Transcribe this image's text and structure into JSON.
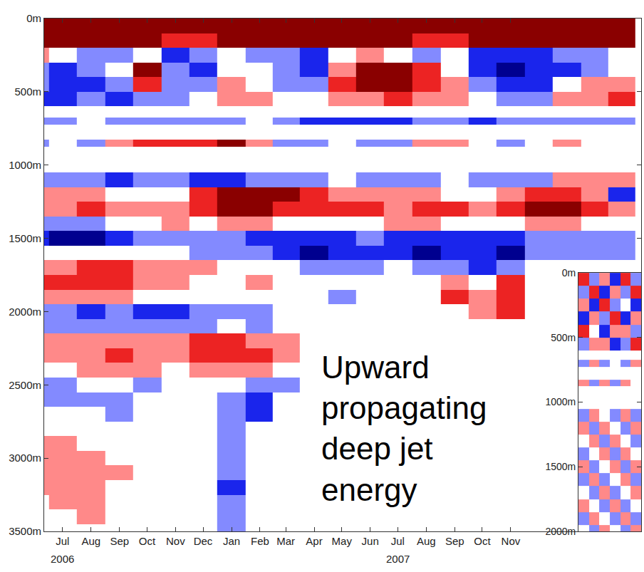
{
  "chart_data": [
    {
      "type": "heatmap",
      "x": [
        "2006-06-15",
        "2006-07-15",
        "2006-08-15",
        "2006-09-15",
        "2006-10-15",
        "2006-11-15",
        "2006-12-15",
        "2007-01-15",
        "2007-02-15",
        "2007-03-15",
        "2007-04-15",
        "2007-05-15",
        "2007-06-15",
        "2007-07-15",
        "2007-08-15",
        "2007-09-15",
        "2007-10-15",
        "2007-11-15",
        "2007-12-15",
        "2008-01-15",
        "2008-02-15",
        "2008-03-15"
      ],
      "y": [
        50,
        150,
        250,
        350,
        450,
        550,
        650,
        700,
        750,
        800,
        850,
        900,
        1000,
        1100,
        1200,
        1300,
        1400,
        1500,
        1600,
        1700,
        1800,
        1900,
        2000,
        2100,
        2200,
        2300,
        2400,
        2500,
        2600,
        2700,
        2800,
        2900,
        3000,
        3100,
        3200,
        3300,
        3400,
        3500
      ],
      "cells": [
        [
          3,
          3,
          3,
          3,
          3,
          3,
          3,
          3,
          3,
          3,
          3,
          3,
          3,
          3,
          3,
          3,
          3,
          3,
          3,
          3,
          3,
          3
        ],
        [
          3,
          3,
          3,
          3,
          3,
          2,
          2,
          3,
          3,
          3,
          3,
          3,
          3,
          3,
          2,
          2,
          3,
          3,
          3,
          3,
          3,
          3
        ],
        [
          1,
          0,
          -1,
          -1,
          0,
          -2,
          -1,
          0,
          -1,
          -1,
          -2,
          0,
          1,
          0,
          -1,
          0,
          -2,
          -2,
          -2,
          -1,
          -1,
          0
        ],
        [
          -1,
          -2,
          -1,
          0,
          3,
          -1,
          -2,
          0,
          0,
          -1,
          -2,
          1,
          3,
          3,
          2,
          0,
          -2,
          -3,
          -2,
          -2,
          -1,
          0
        ],
        [
          -1,
          -2,
          -2,
          -1,
          2,
          -1,
          -1,
          1,
          0,
          -1,
          -1,
          2,
          3,
          3,
          2,
          1,
          -1,
          -2,
          -2,
          0,
          1,
          1
        ],
        [
          -2,
          -2,
          -1,
          -2,
          -1,
          -1,
          0,
          1,
          1,
          0,
          0,
          1,
          1,
          2,
          1,
          1,
          0,
          -1,
          -1,
          1,
          1,
          2
        ],
        [
          null,
          null,
          null,
          null,
          null,
          null,
          null,
          null,
          null,
          null,
          null,
          null,
          null,
          null,
          null,
          null,
          null,
          null,
          null,
          null,
          null,
          null
        ],
        [
          -1,
          -1,
          0,
          -1,
          -1,
          -1,
          -1,
          -1,
          0,
          -1,
          -2,
          -2,
          -2,
          -2,
          -1,
          -1,
          -2,
          -1,
          -1,
          -1,
          -1,
          -1
        ],
        [
          null,
          null,
          null,
          null,
          null,
          null,
          null,
          null,
          null,
          null,
          null,
          null,
          null,
          null,
          null,
          null,
          null,
          null,
          null,
          null,
          null,
          null
        ],
        [
          null,
          null,
          null,
          null,
          null,
          null,
          null,
          null,
          null,
          null,
          null,
          null,
          null,
          null,
          null,
          null,
          null,
          null,
          null,
          null,
          null,
          null
        ],
        [
          -1,
          0,
          -1,
          1,
          2,
          2,
          2,
          3,
          1,
          -1,
          -1,
          0,
          -1,
          -1,
          1,
          1,
          0,
          -1,
          0,
          1,
          0,
          0
        ],
        [
          null,
          null,
          null,
          null,
          null,
          null,
          null,
          null,
          null,
          null,
          null,
          null,
          null,
          null,
          null,
          null,
          null,
          null,
          null,
          null,
          null,
          null
        ],
        [
          null,
          null,
          null,
          null,
          null,
          null,
          null,
          null,
          null,
          null,
          null,
          null,
          null,
          null,
          null,
          null,
          null,
          null,
          null,
          null,
          null,
          null
        ],
        [
          -1,
          -1,
          -1,
          -2,
          -1,
          -1,
          -2,
          -2,
          -1,
          -1,
          -1,
          0,
          -1,
          -1,
          -1,
          0,
          -1,
          -1,
          -1,
          1,
          1,
          1
        ],
        [
          1,
          1,
          1,
          0,
          0,
          0,
          2,
          3,
          3,
          3,
          2,
          1,
          1,
          1,
          1,
          0,
          0,
          1,
          2,
          2,
          1,
          -2
        ],
        [
          1,
          1,
          2,
          1,
          1,
          1,
          2,
          3,
          3,
          2,
          2,
          2,
          2,
          1,
          2,
          2,
          1,
          2,
          3,
          3,
          2,
          1
        ],
        [
          -1,
          -1,
          -1,
          0,
          0,
          1,
          0,
          1,
          1,
          0,
          0,
          0,
          0,
          1,
          1,
          0,
          0,
          0,
          1,
          1,
          0,
          0
        ],
        [
          -2,
          -3,
          -3,
          -2,
          -1,
          -1,
          -1,
          -1,
          -2,
          -2,
          -2,
          -2,
          -1,
          -2,
          -2,
          -2,
          -2,
          -2,
          -1,
          -1,
          -1,
          -1
        ],
        [
          0,
          0,
          0,
          0,
          0,
          0,
          -1,
          -1,
          -1,
          -2,
          -3,
          -2,
          -2,
          -2,
          -3,
          -2,
          -2,
          -3,
          -1,
          -1,
          -1,
          -1
        ],
        [
          1,
          1,
          2,
          2,
          1,
          1,
          1,
          0,
          0,
          0,
          -1,
          -1,
          -1,
          null,
          -1,
          -1,
          -2,
          -1,
          null,
          null,
          null,
          null
        ],
        [
          2,
          2,
          2,
          2,
          1,
          1,
          0,
          0,
          1,
          0,
          0,
          0,
          0,
          null,
          null,
          1,
          0,
          2,
          null,
          null,
          null,
          null
        ],
        [
          1,
          1,
          1,
          1,
          0,
          0,
          0,
          0,
          0,
          0,
          0,
          -1,
          null,
          null,
          null,
          2,
          1,
          2,
          null,
          null,
          null,
          null
        ],
        [
          -1,
          -1,
          -2,
          -1,
          -2,
          -2,
          -1,
          -1,
          -1,
          0,
          0,
          null,
          null,
          null,
          null,
          null,
          1,
          2,
          null,
          null,
          null,
          null
        ],
        [
          -1,
          -1,
          -1,
          -1,
          -1,
          -1,
          -1,
          0,
          -1,
          0,
          0,
          null,
          null,
          null,
          null,
          null,
          null,
          null,
          null,
          null,
          null,
          null
        ],
        [
          1,
          1,
          1,
          1,
          1,
          1,
          2,
          2,
          1,
          1,
          null,
          null,
          null,
          null,
          null,
          null,
          null,
          null,
          null,
          null,
          null,
          null
        ],
        [
          1,
          1,
          1,
          2,
          1,
          1,
          2,
          2,
          2,
          1,
          null,
          null,
          null,
          null,
          null,
          null,
          null,
          null,
          null,
          null,
          null,
          null
        ],
        [
          0,
          0,
          1,
          1,
          1,
          0,
          1,
          1,
          1,
          0,
          null,
          null,
          null,
          null,
          null,
          null,
          null,
          null,
          null,
          null,
          null,
          null
        ],
        [
          -1,
          -1,
          0,
          0,
          -1,
          0,
          0,
          0,
          -1,
          -1,
          null,
          null,
          null,
          null,
          null,
          null,
          null,
          null,
          null,
          null,
          null,
          null
        ],
        [
          -1,
          -1,
          -1,
          -1,
          0,
          0,
          0,
          -1,
          -2,
          null,
          null,
          null,
          null,
          null,
          null,
          null,
          null,
          null,
          null,
          null,
          null,
          null
        ],
        [
          0,
          0,
          0,
          -1,
          0,
          0,
          0,
          -1,
          -2,
          null,
          null,
          null,
          null,
          null,
          null,
          null,
          null,
          null,
          null,
          null,
          null,
          null
        ],
        [
          0,
          0,
          0,
          0,
          0,
          0,
          0,
          -1,
          null,
          null,
          null,
          null,
          null,
          null,
          null,
          null,
          null,
          null,
          null,
          null,
          null,
          null
        ],
        [
          1,
          1,
          0,
          0,
          0,
          0,
          null,
          -1,
          null,
          null,
          null,
          null,
          null,
          null,
          null,
          null,
          null,
          null,
          null,
          null,
          null,
          null
        ],
        [
          1,
          1,
          1,
          0,
          0,
          0,
          null,
          -1,
          null,
          null,
          null,
          null,
          null,
          null,
          null,
          null,
          null,
          null,
          null,
          null,
          null,
          null
        ],
        [
          1,
          1,
          1,
          1,
          0,
          0,
          null,
          -1,
          null,
          null,
          null,
          null,
          null,
          null,
          null,
          null,
          null,
          null,
          null,
          null,
          null,
          null
        ],
        [
          1,
          1,
          1,
          0,
          0,
          0,
          null,
          -2,
          null,
          null,
          null,
          null,
          null,
          null,
          null,
          null,
          null,
          null,
          null,
          null,
          null,
          null
        ],
        [
          0,
          1,
          1,
          0,
          0,
          0,
          null,
          -1,
          null,
          null,
          null,
          null,
          null,
          null,
          null,
          null,
          null,
          null,
          null,
          null,
          null,
          null
        ],
        [
          0,
          0,
          1,
          0,
          0,
          0,
          null,
          -1,
          null,
          null,
          null,
          null,
          null,
          null,
          null,
          null,
          null,
          null,
          null,
          null,
          null,
          null
        ],
        [
          0,
          0,
          0,
          0,
          0,
          0,
          null,
          -1,
          null,
          null,
          null,
          null,
          null,
          null,
          null,
          null,
          null,
          null,
          null,
          null,
          null,
          null
        ]
      ],
      "zlim": [
        -3,
        3
      ],
      "xlim": [
        "2006-06-25",
        "2008-04-05"
      ],
      "xticks": [
        {
          "value": "2006-07-15",
          "label": "Jul"
        },
        {
          "value": "2006-08-15",
          "label": "Aug"
        },
        {
          "value": "2006-09-15",
          "label": "Sep"
        },
        {
          "value": "2006-10-15",
          "label": "Oct"
        },
        {
          "value": "2006-11-15",
          "label": "Nov"
        },
        {
          "value": "2006-12-15",
          "label": "Dec"
        },
        {
          "value": "2007-01-15",
          "label": "Jan"
        },
        {
          "value": "2007-02-15",
          "label": "Feb"
        },
        {
          "value": "2007-03-15",
          "label": "Mar"
        },
        {
          "value": "2007-04-15",
          "label": "Apr"
        },
        {
          "value": "2007-05-15",
          "label": "May"
        },
        {
          "value": "2007-06-15",
          "label": "Jun"
        },
        {
          "value": "2007-07-15",
          "label": "Jul"
        },
        {
          "value": "2007-08-15",
          "label": "Aug"
        },
        {
          "value": "2007-09-15",
          "label": "Sep"
        },
        {
          "value": "2007-10-15",
          "label": "Oct"
        },
        {
          "value": "2007-11-15",
          "label": "Nov"
        }
      ],
      "ylim": [
        3500,
        0
      ],
      "yticks": [
        {
          "value": 0,
          "label": "0m"
        },
        {
          "value": 500,
          "label": "500m"
        },
        {
          "value": 1000,
          "label": "1000m"
        },
        {
          "value": 1500,
          "label": "1500m"
        },
        {
          "value": 2000,
          "label": "2000m"
        },
        {
          "value": 2500,
          "label": "2500m"
        },
        {
          "value": 3000,
          "label": "3000m"
        },
        {
          "value": 3500,
          "label": "3500m"
        }
      ],
      "grid": false,
      "annotations": [
        {
          "text": "2006",
          "x": "2006-07-15"
        },
        {
          "text": "2007",
          "x": "2007-07-15"
        },
        {
          "text": "Upward propagating deep jet energy",
          "x": "2007-04-21",
          "y": 2250
        }
      ]
    },
    {
      "type": "heatmap",
      "x": [
        1,
        2,
        3,
        4,
        5,
        6
      ],
      "y": [
        50,
        150,
        250,
        350,
        450,
        550,
        650,
        700,
        750,
        800,
        850,
        900,
        1000,
        1100,
        1200,
        1300,
        1400,
        1500,
        1600,
        1700,
        1800,
        1900,
        2000
      ],
      "cells": [
        [
          2,
          -1,
          1,
          -2,
          2,
          -1
        ],
        [
          -1,
          2,
          -2,
          1,
          -1,
          2
        ],
        [
          1,
          -2,
          2,
          -1,
          0,
          -2
        ],
        [
          -2,
          1,
          -1,
          2,
          -2,
          1
        ],
        [
          2,
          0,
          -2,
          1,
          1,
          -1
        ],
        [
          -1,
          1,
          1,
          -2,
          -1,
          2
        ],
        [
          null,
          null,
          null,
          null,
          null,
          null
        ],
        [
          -1,
          1,
          -1,
          0,
          -1,
          1
        ],
        [
          null,
          null,
          null,
          null,
          null,
          null
        ],
        [
          null,
          null,
          null,
          null,
          null,
          null
        ],
        [
          1,
          -1,
          1,
          -1,
          1,
          0
        ],
        [
          null,
          null,
          null,
          null,
          null,
          null
        ],
        [
          null,
          null,
          null,
          null,
          null,
          null
        ],
        [
          -1,
          1,
          0,
          -1,
          1,
          -1
        ],
        [
          1,
          -1,
          1,
          0,
          -1,
          1
        ],
        [
          0,
          1,
          -1,
          1,
          0,
          -1
        ],
        [
          -1,
          0,
          1,
          -1,
          1,
          0
        ],
        [
          1,
          -1,
          0,
          1,
          -1,
          1
        ],
        [
          -1,
          1,
          -1,
          0,
          1,
          -1
        ],
        [
          0,
          -1,
          1,
          -1,
          0,
          1
        ],
        [
          1,
          0,
          -1,
          1,
          -1,
          0
        ],
        [
          -1,
          1,
          0,
          -1,
          1,
          -1
        ],
        [
          0,
          -1,
          1,
          0,
          -1,
          1
        ]
      ],
      "zlim": [
        -3,
        3
      ],
      "xlim": [
        0.5,
        6.5
      ],
      "xticks": [],
      "ylim": [
        2000,
        0
      ],
      "yticks": [
        {
          "value": 0,
          "label": "0m"
        },
        {
          "value": 500,
          "label": "500m"
        },
        {
          "value": 1000,
          "label": "1000m"
        },
        {
          "value": 1500,
          "label": "1500m"
        },
        {
          "value": 2000,
          "label": "2000m"
        }
      ],
      "grid": false,
      "tick_labels": "y"
    }
  ]
}
